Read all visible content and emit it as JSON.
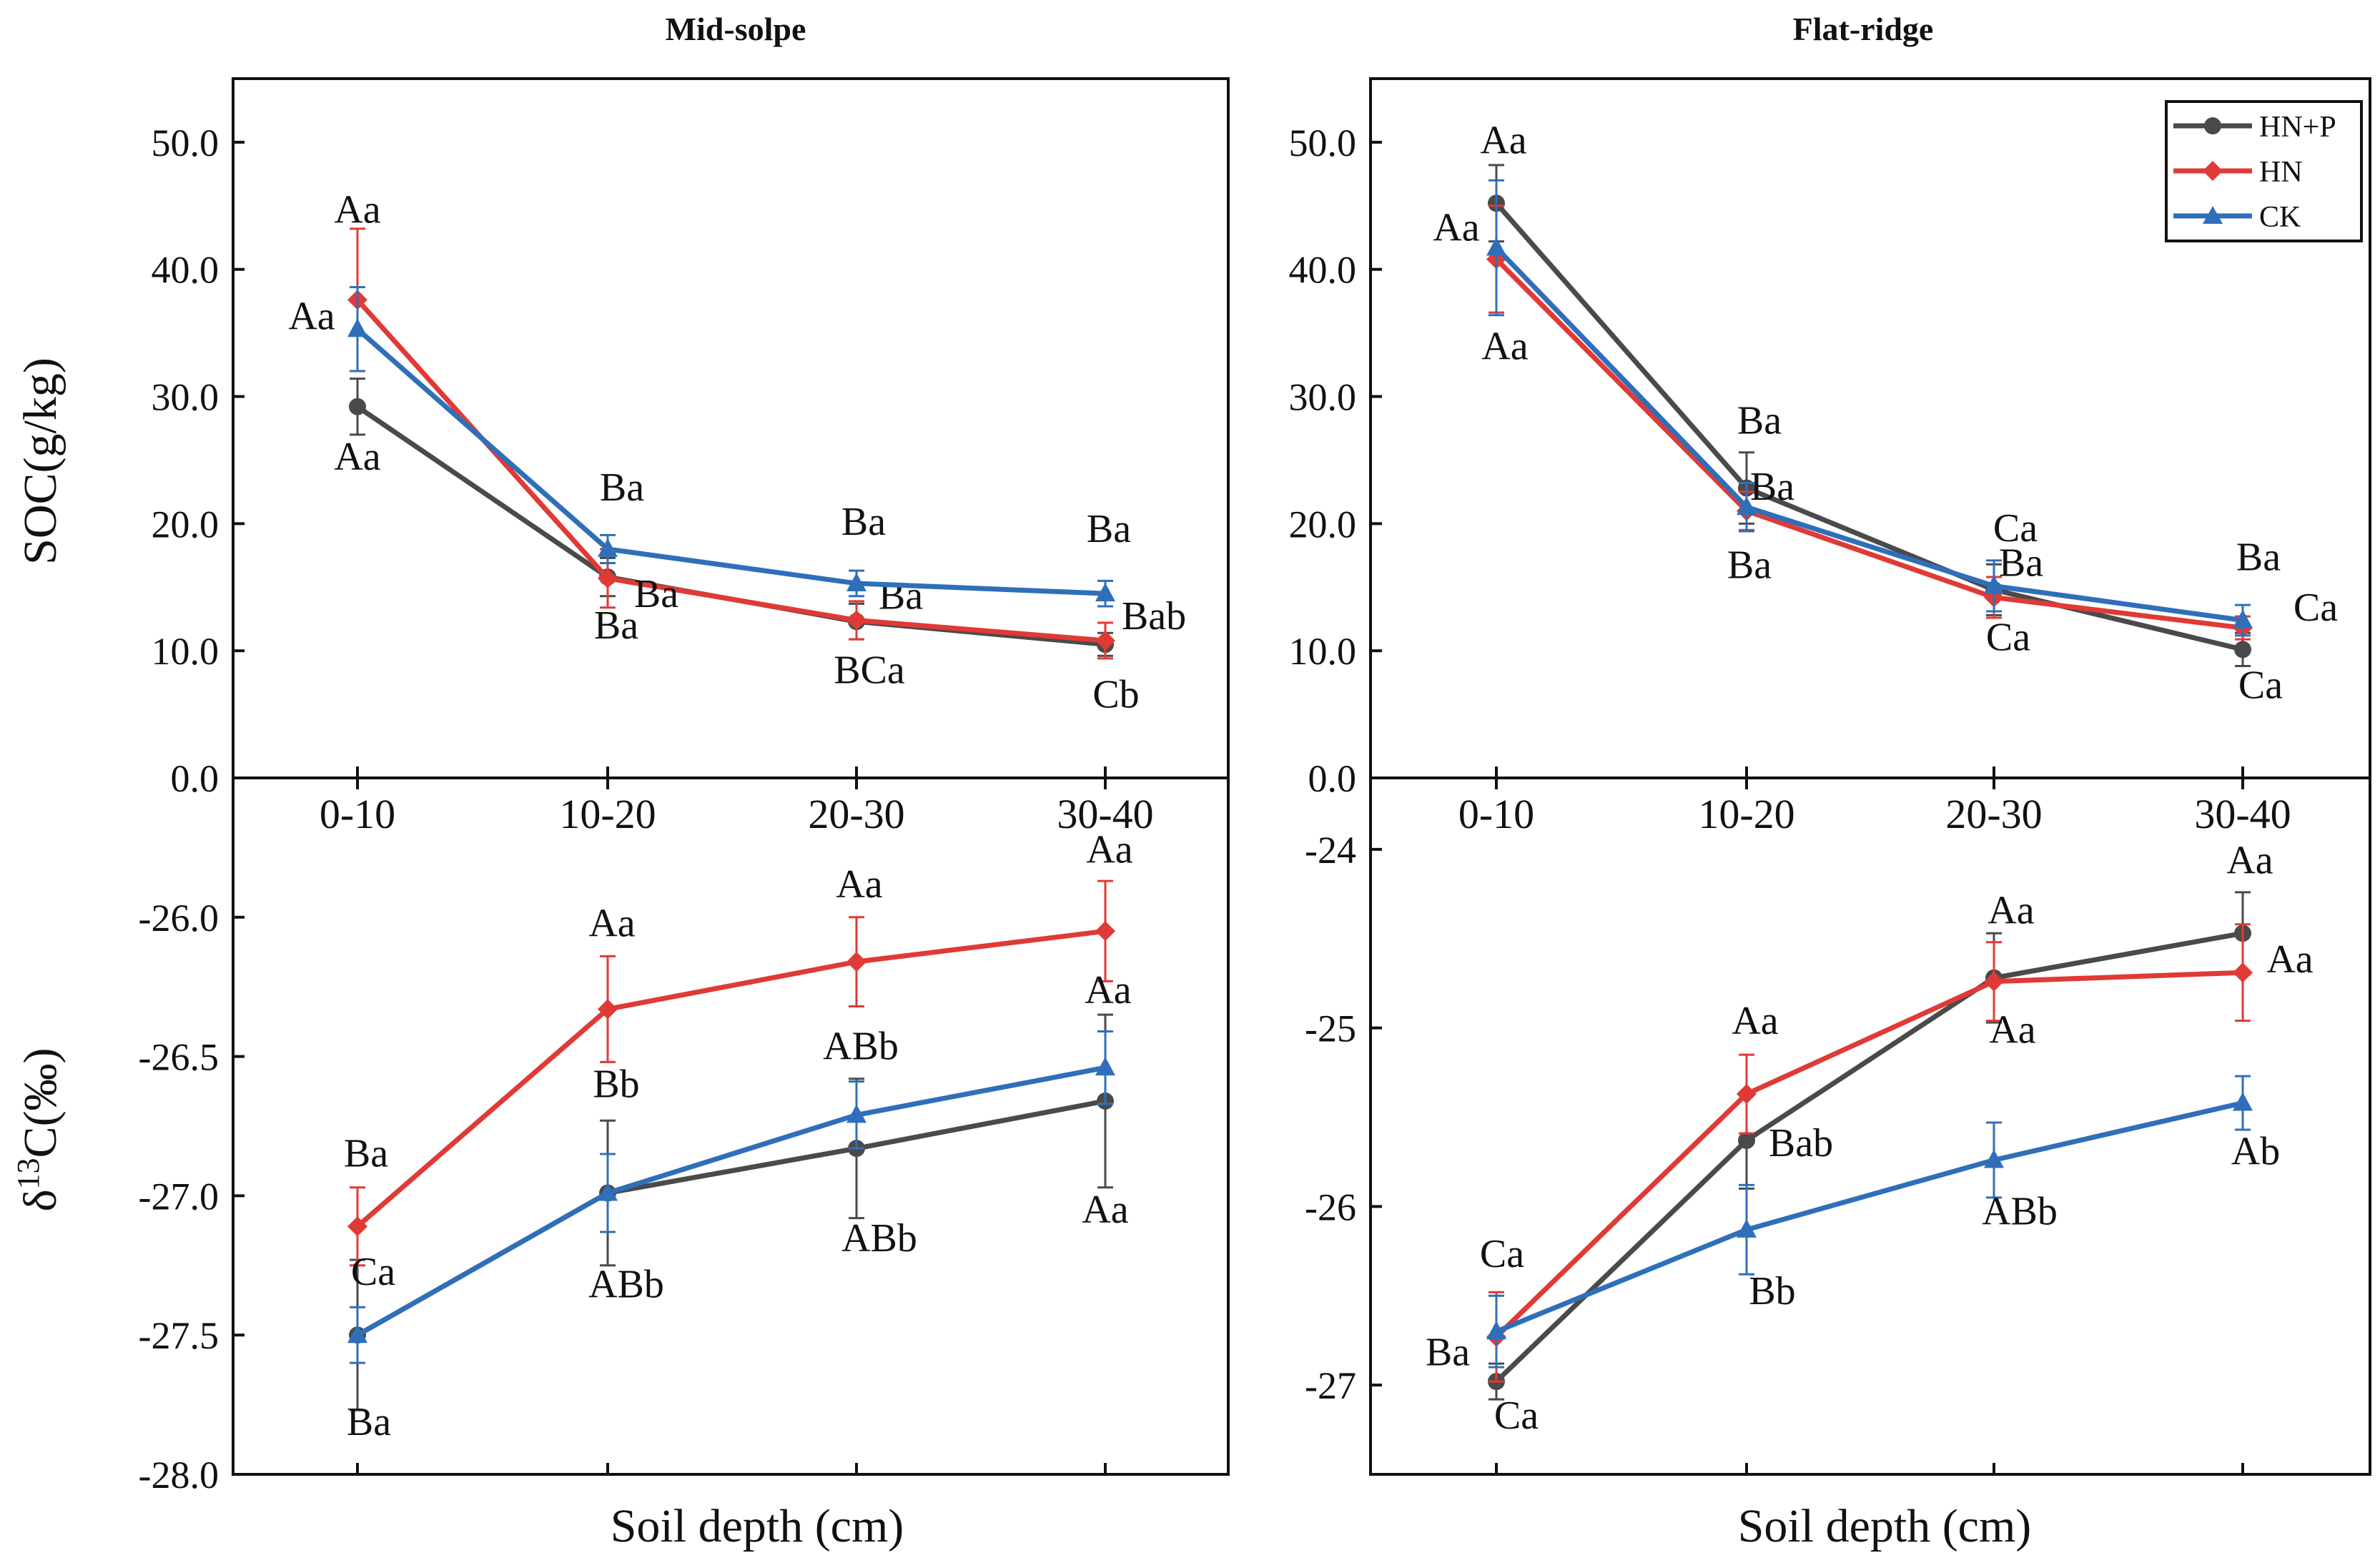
{
  "chart_data": {
    "type": "line",
    "categories": [
      "0-10",
      "10-20",
      "20-30",
      "30-40"
    ],
    "xlabel": "Soil depth (cm)",
    "legend": {
      "placement": "top-right",
      "entries": [
        {
          "name": "HN+P",
          "color": "#4a4a4a",
          "marker": "circle"
        },
        {
          "name": "HN",
          "color": "#e03a36",
          "marker": "diamond"
        },
        {
          "name": "CK",
          "color": "#2f6fba",
          "marker": "triangle"
        }
      ]
    },
    "columns": [
      {
        "id": "mid",
        "title": "Mid-solpe"
      },
      {
        "id": "flat",
        "title": "Flat-ridge"
      }
    ],
    "rows": [
      {
        "id": "soc",
        "ylabel": "SOC(g/kg)"
      },
      {
        "id": "d13c",
        "ylabel_prefix": "δ",
        "ylabel_sup": "13",
        "ylabel_suffix": "C(‰)"
      }
    ],
    "panels": [
      {
        "id": "mid-soc",
        "row": "soc",
        "col": "mid",
        "ylim": [
          0,
          55
        ],
        "yticks": [
          0,
          10,
          20,
          30,
          40,
          50
        ],
        "ytick_labels": [
          "0.0",
          "10.0",
          "20.0",
          "30.0",
          "40.0",
          "50.0"
        ],
        "show_xtick_labels": true,
        "series": [
          {
            "name": "HN+P",
            "values": [
              29.2,
              15.8,
              12.3,
              10.5
            ],
            "errors": [
              2.2,
              1.5,
              1.4,
              0.9
            ],
            "labels": [
              "Aa",
              "Ba",
              "BCa",
              "Cb"
            ]
          },
          {
            "name": "HN",
            "values": [
              37.6,
              15.7,
              12.4,
              10.8
            ],
            "errors": [
              5.6,
              2.3,
              1.5,
              1.4
            ],
            "labels": [
              "Aa",
              "Ba",
              "Ba",
              "Bab"
            ]
          },
          {
            "name": "CK",
            "values": [
              35.3,
              18.0,
              15.3,
              14.5
            ],
            "errors": [
              3.3,
              1.1,
              1.0,
              1.0
            ],
            "labels": [
              "Aa",
              "Ba",
              "Ba",
              "Ba"
            ]
          }
        ]
      },
      {
        "id": "flat-soc",
        "row": "soc",
        "col": "flat",
        "ylim": [
          0,
          55
        ],
        "yticks": [
          0,
          10,
          20,
          30,
          40,
          50
        ],
        "ytick_labels": [
          "0.0",
          "10.0",
          "20.0",
          "30.0",
          "40.0",
          "50.0"
        ],
        "show_xtick_labels": true,
        "series": [
          {
            "name": "HN+P",
            "values": [
              45.2,
              22.8,
              14.8,
              10.1
            ],
            "errors": [
              3.0,
              2.8,
              2.0,
              1.3
            ],
            "labels": [
              "Aa",
              "Ba",
              "Ca",
              "Ca"
            ]
          },
          {
            "name": "HN",
            "values": [
              40.8,
              21.0,
              14.2,
              11.8
            ],
            "errors": [
              4.2,
              1.5,
              1.6,
              0.9
            ],
            "labels": [
              "Aa",
              "Ba",
              "Ca",
              "Ca"
            ]
          },
          {
            "name": "CK",
            "values": [
              41.7,
              21.3,
              15.1,
              12.4
            ],
            "errors": [
              5.3,
              1.9,
              2.0,
              1.2
            ],
            "labels": [
              "Aa",
              "Ba",
              "Ba",
              "Ba"
            ]
          }
        ]
      },
      {
        "id": "mid-d13c",
        "row": "d13c",
        "col": "mid",
        "ylim": [
          -28.0,
          -25.5
        ],
        "yticks": [
          -28.0,
          -27.5,
          -27.0,
          -26.5,
          -26.0
        ],
        "ytick_labels": [
          "-28.0",
          "-27.5",
          "-27.0",
          "-26.5",
          "-26.0"
        ],
        "show_xtick_labels": false,
        "series": [
          {
            "name": "HN+P",
            "values": [
              -27.5,
              -26.99,
              -26.83,
              -26.66
            ],
            "errors": [
              0.27,
              0.26,
              0.25,
              0.31
            ],
            "labels": [
              "Ba",
              "ABb",
              "ABb",
              "Aa"
            ]
          },
          {
            "name": "HN",
            "values": [
              -27.11,
              -26.33,
              -26.16,
              -26.05
            ],
            "errors": [
              0.14,
              0.19,
              0.16,
              0.18
            ],
            "labels": [
              "Ba",
              "Aa",
              "Aa",
              "Aa"
            ]
          },
          {
            "name": "CK",
            "values": [
              -27.5,
              -26.99,
              -26.71,
              -26.54
            ],
            "errors": [
              0.1,
              0.14,
              0.12,
              0.13
            ],
            "labels": [
              "Ca",
              "Bb",
              "ABb",
              "Aa"
            ]
          }
        ]
      },
      {
        "id": "flat-d13c",
        "row": "d13c",
        "col": "flat",
        "ylim": [
          -27.5,
          -23.6
        ],
        "yticks": [
          -27,
          -26,
          -25,
          -24
        ],
        "ytick_labels": [
          "-27",
          "-26",
          "-25",
          "-24"
        ],
        "show_xtick_labels": false,
        "series": [
          {
            "name": "HN+P",
            "values": [
              -26.98,
              -25.63,
              -24.72,
              -24.47
            ],
            "errors": [
              0.1,
              0.27,
              0.25,
              0.23
            ],
            "labels": [
              "Ca",
              "Bab",
              "Aa",
              "Aa"
            ]
          },
          {
            "name": "HN",
            "values": [
              -26.73,
              -25.37,
              -24.74,
              -24.69
            ],
            "errors": [
              0.25,
              0.22,
              0.22,
              0.27
            ],
            "labels": [
              "Ba",
              "Aa",
              "Aa",
              "Aa"
            ]
          },
          {
            "name": "CK",
            "values": [
              -26.7,
              -26.13,
              -25.74,
              -25.42
            ],
            "errors": [
              0.2,
              0.25,
              0.21,
              0.15
            ],
            "labels": [
              "Ca",
              "Bb",
              "ABb",
              "Ab"
            ]
          }
        ]
      }
    ]
  }
}
